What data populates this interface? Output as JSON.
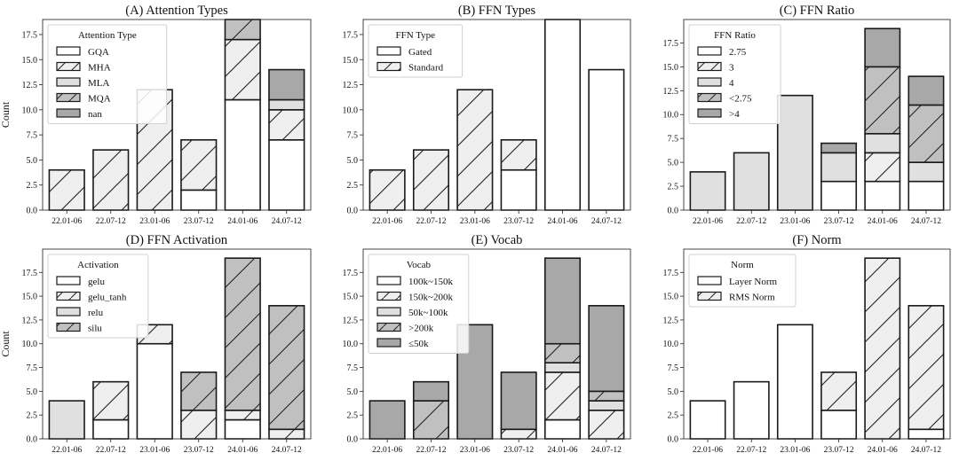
{
  "chart_data": [
    {
      "type": "bar",
      "stacked": true,
      "title": "(A) Attention Types",
      "xlabel": "",
      "ylabel": "Count",
      "ylim": [
        0,
        19
      ],
      "yticks": [
        "0.0",
        "2.5",
        "5.0",
        "7.5",
        "10.0",
        "12.5",
        "15.0",
        "17.5"
      ],
      "categories": [
        "22.01-06",
        "22.07-12",
        "23.01-06",
        "23.07-12",
        "24.01-06",
        "24.07-12"
      ],
      "legend": {
        "title": "Attention Type",
        "placement": "top-left"
      },
      "series": [
        {
          "name": "GQA",
          "values": [
            0,
            0,
            0,
            2,
            11,
            7
          ],
          "color": "#ffffff",
          "hatch": false
        },
        {
          "name": "MHA",
          "values": [
            4,
            6,
            12,
            5,
            6,
            3
          ],
          "color": "#efefef",
          "hatch": true
        },
        {
          "name": "MLA",
          "values": [
            0,
            0,
            0,
            0,
            0,
            1
          ],
          "color": "#e0e0e0",
          "hatch": false
        },
        {
          "name": "MQA",
          "values": [
            0,
            0,
            0,
            0,
            2,
            0
          ],
          "color": "#c0c0c0",
          "hatch": true
        },
        {
          "name": "nan",
          "values": [
            0,
            0,
            0,
            0,
            0,
            3
          ],
          "color": "#a8a8a8",
          "hatch": false
        }
      ]
    },
    {
      "type": "bar",
      "stacked": true,
      "title": "(B) FFN Types",
      "xlabel": "",
      "ylabel": "",
      "ylim": [
        0,
        19
      ],
      "yticks": [
        "0.0",
        "2.5",
        "5.0",
        "7.5",
        "10.0",
        "12.5",
        "15.0",
        "17.5"
      ],
      "categories": [
        "22.01-06",
        "22.07-12",
        "23.01-06",
        "23.07-12",
        "24.01-06",
        "24.07-12"
      ],
      "legend": {
        "title": "FFN Type",
        "placement": "top-left"
      },
      "series": [
        {
          "name": "Gated",
          "values": [
            0,
            0,
            0,
            4,
            19,
            14
          ],
          "color": "#ffffff",
          "hatch": false
        },
        {
          "name": "Standard",
          "values": [
            4,
            6,
            12,
            3,
            0,
            0
          ],
          "color": "#efefef",
          "hatch": true
        }
      ]
    },
    {
      "type": "bar",
      "stacked": true,
      "title": "(C) FFN Ratio",
      "xlabel": "",
      "ylabel": "",
      "ylim": [
        0,
        19.95
      ],
      "yticks": [
        "0.0",
        "2.5",
        "5.0",
        "7.5",
        "10.0",
        "12.5",
        "15.0",
        "17.5"
      ],
      "categories": [
        "22.01-06",
        "22.07-12",
        "23.01-06",
        "23.07-12",
        "24.01-06",
        "24.07-12"
      ],
      "legend": {
        "title": "FFN Ratio",
        "placement": "top-left"
      },
      "series": [
        {
          "name": "2.75",
          "values": [
            0,
            0,
            0,
            3,
            3,
            3
          ],
          "color": "#ffffff",
          "hatch": false
        },
        {
          "name": "3",
          "values": [
            0,
            0,
            0,
            0,
            3,
            0
          ],
          "color": "#efefef",
          "hatch": true
        },
        {
          "name": "4",
          "values": [
            4,
            6,
            12,
            3,
            2,
            2
          ],
          "color": "#e0e0e0",
          "hatch": false
        },
        {
          "name": "<2.75",
          "values": [
            0,
            0,
            0,
            0,
            7,
            6
          ],
          "color": "#c0c0c0",
          "hatch": true
        },
        {
          "name": ">4",
          "values": [
            0,
            0,
            0,
            1,
            4,
            3
          ],
          "color": "#a8a8a8",
          "hatch": false
        }
      ]
    },
    {
      "type": "bar",
      "stacked": true,
      "title": "(D) FFN Activation",
      "xlabel": "",
      "ylabel": "Count",
      "ylim": [
        0,
        19.95
      ],
      "yticks": [
        "0.0",
        "2.5",
        "5.0",
        "7.5",
        "10.0",
        "12.5",
        "15.0",
        "17.5"
      ],
      "categories": [
        "22.01-06",
        "22.07-12",
        "23.01-06",
        "23.07-12",
        "24.01-06",
        "24.07-12"
      ],
      "legend": {
        "title": "Activation",
        "placement": "top-left"
      },
      "series": [
        {
          "name": "gelu",
          "values": [
            0,
            2,
            10,
            0,
            2,
            0
          ],
          "color": "#ffffff",
          "hatch": false
        },
        {
          "name": "gelu_tanh",
          "values": [
            0,
            4,
            2,
            3,
            1,
            1
          ],
          "color": "#efefef",
          "hatch": true
        },
        {
          "name": "relu",
          "values": [
            4,
            0,
            0,
            0,
            0,
            0
          ],
          "color": "#e0e0e0",
          "hatch": false
        },
        {
          "name": "silu",
          "values": [
            0,
            0,
            0,
            4,
            16,
            13
          ],
          "color": "#c0c0c0",
          "hatch": true
        }
      ]
    },
    {
      "type": "bar",
      "stacked": true,
      "title": "(E) Vocab",
      "xlabel": "",
      "ylabel": "",
      "ylim": [
        0,
        19.95
      ],
      "yticks": [
        "0.0",
        "2.5",
        "5.0",
        "7.5",
        "10.0",
        "12.5",
        "15.0",
        "17.5"
      ],
      "categories": [
        "22.01-06",
        "22.07-12",
        "23.01-06",
        "23.07-12",
        "24.01-06",
        "24.07-12"
      ],
      "legend": {
        "title": "Vocab",
        "placement": "top-left"
      },
      "series": [
        {
          "name": "100k~150k",
          "values": [
            0,
            0,
            0,
            0,
            2,
            0
          ],
          "color": "#ffffff",
          "hatch": false
        },
        {
          "name": "150k~200k",
          "values": [
            0,
            0,
            0,
            1,
            5,
            3
          ],
          "color": "#efefef",
          "hatch": true
        },
        {
          "name": "50k~100k",
          "values": [
            0,
            0,
            0,
            0,
            1,
            1
          ],
          "color": "#e0e0e0",
          "hatch": false
        },
        {
          "name": ">200k",
          "values": [
            0,
            4,
            0,
            0,
            2,
            1
          ],
          "color": "#c0c0c0",
          "hatch": true
        },
        {
          "name": "≤50k",
          "values": [
            4,
            2,
            12,
            6,
            9,
            9
          ],
          "color": "#a8a8a8",
          "hatch": false
        }
      ]
    },
    {
      "type": "bar",
      "stacked": true,
      "title": "(F) Norm",
      "xlabel": "",
      "ylabel": "",
      "ylim": [
        0,
        19.95
      ],
      "yticks": [
        "0.0",
        "2.5",
        "5.0",
        "7.5",
        "10.0",
        "12.5",
        "15.0",
        "17.5"
      ],
      "categories": [
        "22.01-06",
        "22.07-12",
        "23.01-06",
        "23.07-12",
        "24.01-06",
        "24.07-12"
      ],
      "legend": {
        "title": "Norm",
        "placement": "top-left"
      },
      "series": [
        {
          "name": "Layer Norm",
          "values": [
            4,
            6,
            12,
            3,
            0,
            1
          ],
          "color": "#ffffff",
          "hatch": false
        },
        {
          "name": "RMS Norm",
          "values": [
            0,
            0,
            0,
            4,
            19,
            13
          ],
          "color": "#efefef",
          "hatch": true
        }
      ]
    }
  ]
}
